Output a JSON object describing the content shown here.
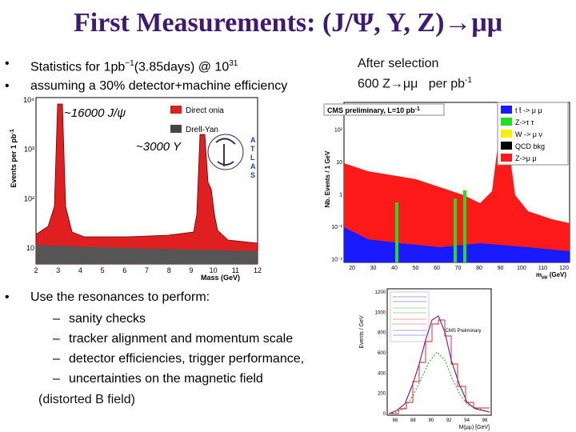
{
  "title": "First Measurements: (J/Ψ, Υ, Z)→μμ",
  "intro": [
    {
      "text": "Statistics for 1pb",
      "sup": "−1",
      "text2": "(3.85days) @ 10",
      "sup2": "31"
    },
    {
      "text": "assuming a 30% detector+machine efficiency"
    }
  ],
  "selection": {
    "line1": "After selection",
    "line2": "600 Z→μμ   per pb",
    "sup": "-1"
  },
  "onia_plot": {
    "y_label": "Events per 1 pb",
    "y_label_sup": "-1",
    "x_label": "Mass (GeV)",
    "yticks": [
      "10⁴",
      "10³",
      "10²",
      "10"
    ],
    "xticks": [
      "2",
      "3",
      "4",
      "5",
      "6",
      "7",
      "8",
      "9",
      "10",
      "11",
      "12"
    ],
    "legend": [
      "Direct onia",
      "Drell-Yan"
    ],
    "jpsi_note": "~16000 J/ψ",
    "upsilon_note": "~3000 Υ",
    "logo": [
      "A",
      "T",
      "L",
      "A",
      "S"
    ]
  },
  "z_plot": {
    "header": "CMS preliminary,   L=10 pb",
    "header_sup": "-1",
    "y_label": "Nb. Events / 1 GeV",
    "x_label": "m",
    "x_label_sub": "μμ",
    "x_label_unit": " (GeV)",
    "yticks": [
      "10²",
      "10",
      "1",
      "10⁻¹",
      "10⁻²"
    ],
    "xticks": [
      "20",
      "30",
      "40",
      "50",
      "60",
      "70",
      "80",
      "90",
      "100",
      "110",
      "120"
    ],
    "legend": [
      "t t̄ -> μ μ",
      "Z->τ τ",
      "W -> μ ν",
      "QCD bkg",
      "Z->μ μ"
    ]
  },
  "uses": {
    "lead": "Use the resonances to perform:",
    "items": [
      "sanity checks",
      " tracker alignment and momentum scale",
      "detector efficiencies, trigger performance,",
      " uncertainties on the magnetic field"
    ],
    "tail": "(distorted B field)"
  },
  "alignment_plot": {
    "y_label": "Events / GeV",
    "x_label": "M(μμ) [GeV]",
    "yticks": [
      "1200",
      "1000",
      "800",
      "600",
      "400",
      "200",
      "0"
    ],
    "xticks": [
      "86",
      "88",
      "90",
      "92",
      "94",
      "96"
    ],
    "note": "CMS Preliminary"
  }
}
